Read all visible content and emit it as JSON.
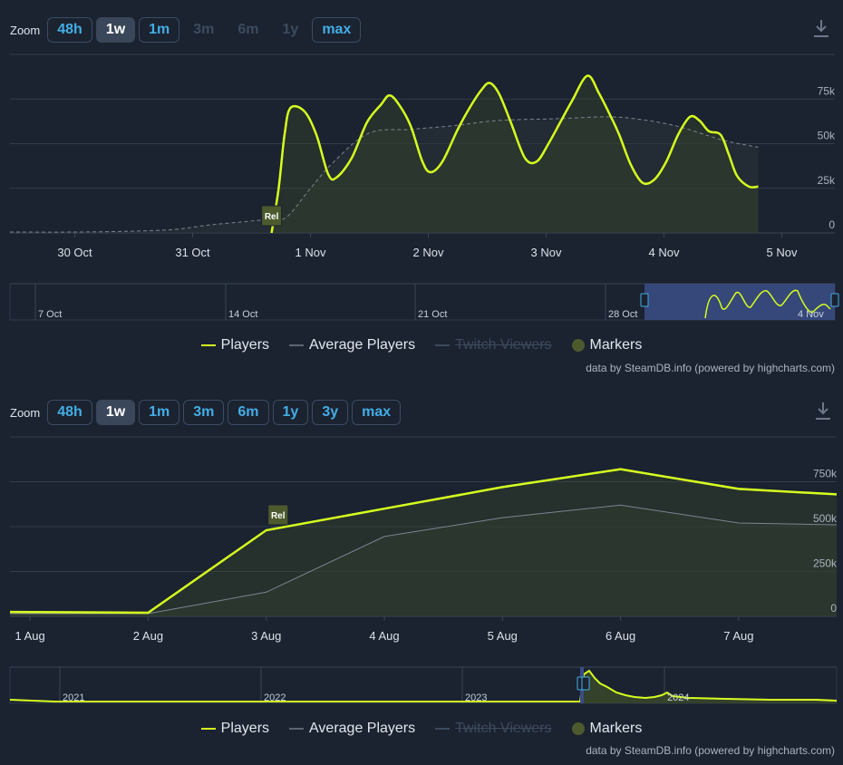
{
  "colors": {
    "players": "#d6ff1f",
    "average": "#7b8591",
    "accent": "#43aee6",
    "marker": "#4c5a2d"
  },
  "charts": [
    {
      "zoom": {
        "label": "Zoom",
        "buttons": [
          "48h",
          "1w",
          "1m",
          "3m",
          "6m",
          "1y",
          "max"
        ],
        "active": "1w",
        "disabled": [
          "3m",
          "6m",
          "1y"
        ]
      },
      "legend": {
        "players": "Players",
        "average": "Average Players",
        "twitch": "Twitch Viewers",
        "markers": "Markers"
      },
      "credits": "data by SteamDB.info (powered by highcharts.com)",
      "icons": {
        "download": "download-icon"
      }
    },
    {
      "zoom": {
        "label": "Zoom",
        "buttons": [
          "48h",
          "1w",
          "1m",
          "3m",
          "6m",
          "1y",
          "3y",
          "max"
        ],
        "active": "1w",
        "disabled": []
      },
      "legend": {
        "players": "Players",
        "average": "Average Players",
        "twitch": "Twitch Viewers",
        "markers": "Markers"
      },
      "credits": "data by SteamDB.info (powered by highcharts.com)",
      "icons": {
        "download": "download-icon"
      }
    }
  ],
  "chart_data": [
    {
      "type": "area",
      "x_unit": "day (Oct-Nov)",
      "x_ticks": [
        {
          "x": 30,
          "label": "30 Oct"
        },
        {
          "x": 31,
          "label": "31 Oct"
        },
        {
          "x": 32,
          "label": "1 Nov"
        },
        {
          "x": 33,
          "label": "2 Nov"
        },
        {
          "x": 34,
          "label": "3 Nov"
        },
        {
          "x": 35,
          "label": "4 Nov"
        },
        {
          "x": 36,
          "label": "5 Nov"
        }
      ],
      "y_ticks": [
        {
          "v": 0,
          "label": "0"
        },
        {
          "v": 25000,
          "label": "25k"
        },
        {
          "v": 50000,
          "label": "50k"
        },
        {
          "v": 75000,
          "label": "75k"
        }
      ],
      "xlim": [
        29.45,
        36.45
      ],
      "ylim": [
        0,
        100000
      ],
      "series": [
        {
          "name": "Players",
          "points": [
            [
              31.67,
              0
            ],
            [
              31.73,
              25000
            ],
            [
              31.78,
              55000
            ],
            [
              31.83,
              70000
            ],
            [
              31.95,
              68000
            ],
            [
              32.05,
              55000
            ],
            [
              32.15,
              33000
            ],
            [
              32.22,
              31000
            ],
            [
              32.35,
              42000
            ],
            [
              32.48,
              62000
            ],
            [
              32.6,
              72000
            ],
            [
              32.67,
              77000
            ],
            [
              32.75,
              72000
            ],
            [
              32.85,
              60000
            ],
            [
              32.95,
              40000
            ],
            [
              33.02,
              34000
            ],
            [
              33.12,
              40000
            ],
            [
              33.25,
              58000
            ],
            [
              33.35,
              70000
            ],
            [
              33.45,
              80000
            ],
            [
              33.52,
              84000
            ],
            [
              33.6,
              78000
            ],
            [
              33.7,
              62000
            ],
            [
              33.82,
              42000
            ],
            [
              33.92,
              40000
            ],
            [
              34.02,
              50000
            ],
            [
              34.12,
              62000
            ],
            [
              34.22,
              74000
            ],
            [
              34.35,
              88000
            ],
            [
              34.45,
              78000
            ],
            [
              34.55,
              65000
            ],
            [
              34.62,
              55000
            ],
            [
              34.72,
              38000
            ],
            [
              34.82,
              28000
            ],
            [
              34.92,
              30000
            ],
            [
              35.02,
              40000
            ],
            [
              35.12,
              55000
            ],
            [
              35.22,
              65000
            ],
            [
              35.3,
              63000
            ],
            [
              35.38,
              57000
            ],
            [
              35.48,
              55000
            ],
            [
              35.55,
              44000
            ],
            [
              35.62,
              32000
            ],
            [
              35.72,
              26000
            ],
            [
              35.8,
              26000
            ]
          ]
        },
        {
          "name": "Average Players",
          "points": [
            [
              29.45,
              500
            ],
            [
              30.0,
              500
            ],
            [
              30.5,
              1000
            ],
            [
              30.85,
              2000
            ],
            [
              31.15,
              4500
            ],
            [
              31.55,
              7000
            ],
            [
              31.67,
              8000
            ],
            [
              31.8,
              9000
            ],
            [
              32.0,
              25000
            ],
            [
              32.2,
              40000
            ],
            [
              32.5,
              56000
            ],
            [
              32.85,
              58000
            ],
            [
              33.2,
              60000
            ],
            [
              33.6,
              63000
            ],
            [
              34.1,
              64000
            ],
            [
              34.5,
              65000
            ],
            [
              34.75,
              64000
            ],
            [
              35.1,
              60000
            ],
            [
              35.5,
              52000
            ],
            [
              35.8,
              48000
            ]
          ]
        }
      ],
      "markers": [
        {
          "x": 31.67,
          "label": "Rel"
        }
      ],
      "navigator": {
        "labels": [
          {
            "label": "7 Oct"
          },
          {
            "label": "14 Oct"
          },
          {
            "label": "21 Oct"
          },
          {
            "label": "28 Oct"
          },
          {
            "label": "4 Nov"
          }
        ]
      }
    },
    {
      "type": "area",
      "x_unit": "day (Aug)",
      "x_ticks": [
        {
          "x": 1,
          "label": "1 Aug"
        },
        {
          "x": 2,
          "label": "2 Aug"
        },
        {
          "x": 3,
          "label": "3 Aug"
        },
        {
          "x": 4,
          "label": "4 Aug"
        },
        {
          "x": 5,
          "label": "5 Aug"
        },
        {
          "x": 6,
          "label": "6 Aug"
        },
        {
          "x": 7,
          "label": "7 Aug"
        }
      ],
      "y_ticks": [
        {
          "v": 0,
          "label": "0"
        },
        {
          "v": 250000,
          "label": "250k"
        },
        {
          "v": 500000,
          "label": "500k"
        },
        {
          "v": 750000,
          "label": "750k"
        }
      ],
      "xlim": [
        0.83,
        7.83
      ],
      "ylim": [
        0,
        1000000
      ],
      "series": [
        {
          "name": "Players",
          "points": [
            [
              0.83,
              25000
            ],
            [
              2,
              20000
            ],
            [
              3,
              480000
            ],
            [
              4,
              600000
            ],
            [
              5,
              720000
            ],
            [
              6,
              820000
            ],
            [
              7,
              710000
            ],
            [
              7.83,
              680000
            ]
          ]
        },
        {
          "name": "Average Players",
          "points": [
            [
              0.83,
              15000
            ],
            [
              2,
              15000
            ],
            [
              3,
              135000
            ],
            [
              4,
              445000
            ],
            [
              5,
              550000
            ],
            [
              6,
              620000
            ],
            [
              7,
              520000
            ],
            [
              7.83,
              510000
            ]
          ]
        }
      ],
      "markers": [
        {
          "x": 3.1,
          "label": "Rel"
        }
      ],
      "navigator": {
        "labels": [
          {
            "label": "2021"
          },
          {
            "label": "2022"
          },
          {
            "label": "2023"
          },
          {
            "label": "2024"
          }
        ]
      }
    }
  ]
}
